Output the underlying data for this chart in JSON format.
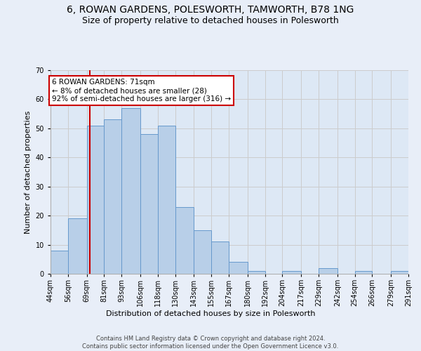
{
  "title": "6, ROWAN GARDENS, POLESWORTH, TAMWORTH, B78 1NG",
  "subtitle": "Size of property relative to detached houses in Polesworth",
  "xlabel": "Distribution of detached houses by size in Polesworth",
  "ylabel": "Number of detached properties",
  "categories": [
    "44sqm",
    "56sqm",
    "69sqm",
    "81sqm",
    "93sqm",
    "106sqm",
    "118sqm",
    "130sqm",
    "143sqm",
    "155sqm",
    "167sqm",
    "180sqm",
    "192sqm",
    "204sqm",
    "217sqm",
    "229sqm",
    "242sqm",
    "254sqm",
    "266sqm",
    "279sqm",
    "291sqm"
  ],
  "bin_starts": [
    44,
    56,
    69,
    81,
    93,
    106,
    118,
    130,
    143,
    155,
    167,
    180,
    192,
    204,
    217,
    229,
    242,
    254,
    266,
    279
  ],
  "bin_ends": [
    56,
    69,
    81,
    93,
    106,
    118,
    130,
    143,
    155,
    167,
    180,
    192,
    204,
    217,
    229,
    242,
    254,
    266,
    279,
    291
  ],
  "heights": [
    8,
    19,
    51,
    53,
    57,
    48,
    51,
    23,
    15,
    11,
    4,
    1,
    0,
    1,
    0,
    2,
    0,
    1,
    0,
    1
  ],
  "bar_color": "#b8cfe8",
  "bar_edge_color": "#6699cc",
  "vline_x": 71,
  "vline_color": "#cc0000",
  "annotation_text": "6 ROWAN GARDENS: 71sqm\n← 8% of detached houses are smaller (28)\n92% of semi-detached houses are larger (316) →",
  "annotation_box_color": "#ffffff",
  "annotation_box_edge": "#cc0000",
  "ylim": [
    0,
    70
  ],
  "yticks": [
    0,
    10,
    20,
    30,
    40,
    50,
    60,
    70
  ],
  "grid_color": "#cccccc",
  "bg_color": "#dde8f5",
  "fig_bg_color": "#e8eef8",
  "footer": "Contains HM Land Registry data © Crown copyright and database right 2024.\nContains public sector information licensed under the Open Government Licence v3.0.",
  "title_fontsize": 10,
  "subtitle_fontsize": 9,
  "annotation_fontsize": 7.5,
  "ylabel_fontsize": 8,
  "xlabel_fontsize": 8,
  "tick_fontsize": 7,
  "footer_fontsize": 6
}
